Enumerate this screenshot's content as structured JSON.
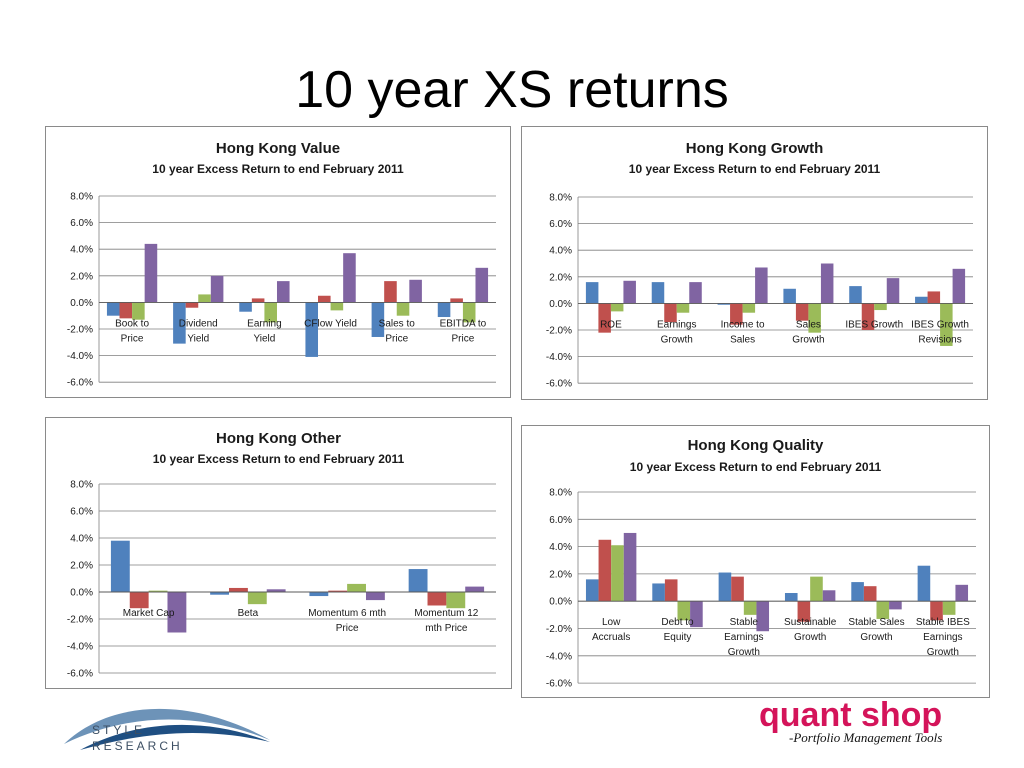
{
  "slide_title": "10 year XS returns",
  "logos": {
    "left_line1": "STYLE",
    "left_line2": "RESEARCH",
    "right_main": "quant shop",
    "right_sub": "-Portfolio Management Tools"
  },
  "colors": {
    "series": [
      "#4F81BD",
      "#C0504D",
      "#9BBB59",
      "#8064A2"
    ],
    "grid": "#7f7f7f",
    "brand_red": "#D4145A"
  },
  "chart_data": [
    {
      "type": "bar",
      "title": "Hong Kong Value",
      "subtitle": "10 year Excess Return to end February 2011",
      "ylim": [
        -6,
        8
      ],
      "yticks": [
        "8.0%",
        "6.0%",
        "4.0%",
        "2.0%",
        "0.0%",
        "-2.0%",
        "-4.0%",
        "-6.0%"
      ],
      "categories": [
        [
          "Book to",
          "Price"
        ],
        [
          "Dividend",
          "Yield"
        ],
        [
          "Earning",
          "Yield"
        ],
        [
          "CFlow Yield"
        ],
        [
          "Sales to",
          "Price"
        ],
        [
          "EBITDA to",
          "Price"
        ]
      ],
      "series": [
        {
          "values": [
            -1.0,
            -3.1,
            -0.7,
            -4.1,
            -2.6,
            -1.1
          ]
        },
        {
          "values": [
            -1.2,
            -0.4,
            0.3,
            0.5,
            1.6,
            0.3
          ]
        },
        {
          "values": [
            -1.3,
            0.6,
            -1.5,
            -0.6,
            -1.0,
            -1.5
          ]
        },
        {
          "values": [
            4.4,
            2.0,
            1.6,
            3.7,
            1.7,
            2.6
          ]
        }
      ],
      "grid": true,
      "legend": "none"
    },
    {
      "type": "bar",
      "title": "Hong Kong Growth",
      "subtitle": "10 year Excess Return to end February 2011",
      "ylim": [
        -6,
        8
      ],
      "yticks": [
        "8.0%",
        "6.0%",
        "4.0%",
        "2.0%",
        "0.0%",
        "-2.0%",
        "-4.0%",
        "-6.0%"
      ],
      "categories": [
        [
          "ROE"
        ],
        [
          "Earnings",
          "Growth"
        ],
        [
          "Income to",
          "Sales"
        ],
        [
          "Sales",
          "Growth"
        ],
        [
          "IBES Growth"
        ],
        [
          "IBES Growth",
          "Revisions"
        ]
      ],
      "series": [
        {
          "values": [
            1.6,
            1.6,
            -0.1,
            1.1,
            1.3,
            0.5
          ]
        },
        {
          "values": [
            -2.2,
            -1.4,
            -1.6,
            -1.3,
            -2.0,
            0.9
          ]
        },
        {
          "values": [
            -0.6,
            -0.7,
            -0.7,
            -2.2,
            -0.5,
            -3.2
          ]
        },
        {
          "values": [
            1.7,
            1.6,
            2.7,
            3.0,
            1.9,
            2.6
          ]
        }
      ],
      "grid": true,
      "legend": "none"
    },
    {
      "type": "bar",
      "title": "Hong Kong Other",
      "subtitle": "10 year Excess Return to end February 2011",
      "ylim": [
        -6,
        8
      ],
      "yticks": [
        "8.0%",
        "6.0%",
        "4.0%",
        "2.0%",
        "0.0%",
        "-2.0%",
        "-4.0%",
        "-6.0%"
      ],
      "categories": [
        [
          "Market Cap"
        ],
        [
          "Beta"
        ],
        [
          "Momentum 6 mth",
          "Price"
        ],
        [
          "Momentum 12",
          "mth Price"
        ]
      ],
      "series": [
        {
          "values": [
            3.8,
            -0.2,
            -0.3,
            1.7
          ]
        },
        {
          "values": [
            -1.2,
            0.3,
            0.1,
            -1.0
          ]
        },
        {
          "values": [
            0.1,
            -0.9,
            0.6,
            -1.2
          ]
        },
        {
          "values": [
            -3.0,
            0.2,
            -0.6,
            0.4
          ]
        }
      ],
      "grid": true,
      "legend": "none"
    },
    {
      "type": "bar",
      "title": "Hong Kong Quality",
      "subtitle": "10 year Excess Return to end February 2011",
      "ylim": [
        -6,
        8
      ],
      "yticks": [
        "8.0%",
        "6.0%",
        "4.0%",
        "2.0%",
        "0.0%",
        "-2.0%",
        "-4.0%",
        "-6.0%"
      ],
      "categories": [
        [
          "Low",
          "Accruals"
        ],
        [
          "Debt to",
          "Equity"
        ],
        [
          "Stable",
          "Earnings",
          "Growth"
        ],
        [
          "Sustainable",
          "Growth"
        ],
        [
          "Stable Sales",
          "Growth"
        ],
        [
          "Stable IBES",
          "Earnings",
          "Growth"
        ]
      ],
      "series": [
        {
          "values": [
            1.6,
            1.3,
            2.1,
            0.6,
            1.4,
            2.6
          ]
        },
        {
          "values": [
            4.5,
            1.6,
            1.8,
            -1.5,
            1.1,
            -1.4
          ]
        },
        {
          "values": [
            4.1,
            -1.4,
            -1.0,
            1.8,
            -1.3,
            -1.0
          ]
        },
        {
          "values": [
            5.0,
            -1.9,
            -2.2,
            0.8,
            -0.6,
            1.2
          ]
        }
      ],
      "grid": true,
      "legend": "none"
    }
  ]
}
